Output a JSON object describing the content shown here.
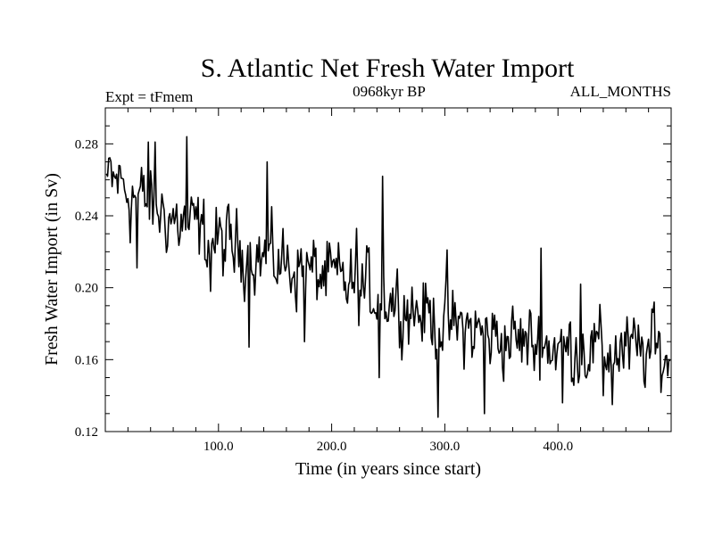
{
  "chart_data": {
    "type": "line",
    "title": "S. Atlantic Net Fresh Water Import",
    "subtitle_left": "Expt = tFmem",
    "subtitle_center": "0968kyr BP",
    "subtitle_right": "ALL_MONTHS",
    "xlabel": "Time (in years since start)",
    "ylabel": "Fresh Water Import (in Sv)",
    "xlim": [
      0,
      500
    ],
    "ylim": [
      0.12,
      0.3
    ],
    "x_ticks": [
      100,
      200,
      300,
      400
    ],
    "x_tick_labels": [
      "100.0",
      "200.0",
      "300.0",
      "400.0"
    ],
    "y_ticks": [
      0.12,
      0.16,
      0.2,
      0.24,
      0.28
    ],
    "y_tick_labels": [
      "0.12",
      "0.16",
      "0.20",
      "0.24",
      "0.28"
    ],
    "grid": false,
    "series": [
      {
        "name": "Net Fresh Water Import",
        "x_start": 1,
        "x_step": 1,
        "trend_knots": [
          [
            0,
            0.262
          ],
          [
            30,
            0.25
          ],
          [
            60,
            0.238
          ],
          [
            100,
            0.225
          ],
          [
            150,
            0.215
          ],
          [
            200,
            0.205
          ],
          [
            250,
            0.195
          ],
          [
            300,
            0.18
          ],
          [
            350,
            0.172
          ],
          [
            400,
            0.167
          ],
          [
            450,
            0.165
          ],
          [
            500,
            0.163
          ]
        ],
        "noise_amplitude": 0.014,
        "extremes": [
          [
            2,
            0.262
          ],
          [
            5,
            0.27
          ],
          [
            12,
            0.268
          ],
          [
            22,
            0.225
          ],
          [
            28,
            0.211
          ],
          [
            38,
            0.281
          ],
          [
            44,
            0.281
          ],
          [
            72,
            0.284
          ],
          [
            80,
            0.245
          ],
          [
            93,
            0.198
          ],
          [
            127,
            0.167
          ],
          [
            143,
            0.27
          ],
          [
            176,
            0.17
          ],
          [
            222,
            0.233
          ],
          [
            242,
            0.15
          ],
          [
            245,
            0.262
          ],
          [
            294,
            0.128
          ],
          [
            302,
            0.221
          ],
          [
            335,
            0.13
          ],
          [
            385,
            0.222
          ],
          [
            404,
            0.136
          ],
          [
            420,
            0.202
          ],
          [
            440,
            0.14
          ],
          [
            448,
            0.135
          ],
          [
            485,
            0.192
          ],
          [
            497,
            0.151
          ]
        ]
      }
    ]
  }
}
